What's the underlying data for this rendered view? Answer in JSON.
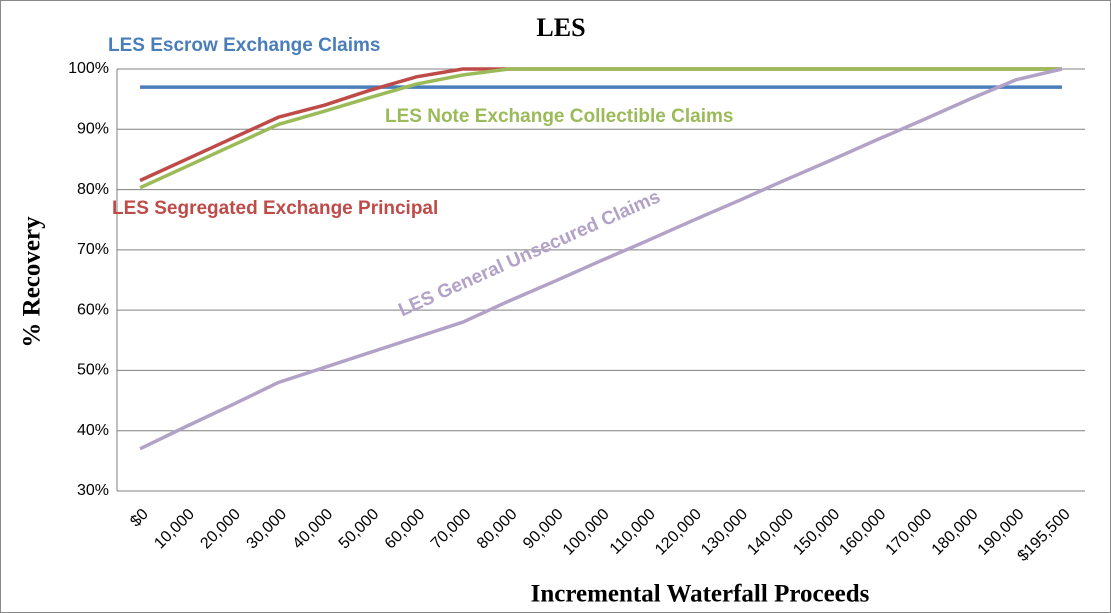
{
  "chart_data": {
    "type": "line",
    "title": "LES",
    "x_label": "Incremental Waterfall Proceeds",
    "y_label": "% Recovery",
    "categories": [
      "$0",
      "10,000",
      "20,000",
      "30,000",
      "40,000",
      "50,000",
      "60,000",
      "70,000",
      "80,000",
      "90,000",
      "100,000",
      "110,000",
      "120,000",
      "130,000",
      "140,000",
      "150,000",
      "160,000",
      "170,000",
      "180,000",
      "190,000",
      "$195,500"
    ],
    "series": [
      {
        "name": "LES Escrow Exchange Claims",
        "color": "#4a7ebb",
        "values": [
          97,
          97,
          97,
          97,
          97,
          97,
          97,
          97,
          97,
          97,
          97,
          97,
          97,
          97,
          97,
          97,
          97,
          97,
          97,
          97,
          97
        ]
      },
      {
        "name": "LES Segregated Exchange Principal",
        "color": "#be4b48",
        "values": [
          81.5,
          85,
          88.5,
          92,
          94,
          96.5,
          98.7,
          100,
          100,
          100,
          100,
          100,
          100,
          100,
          100,
          100,
          100,
          100,
          100,
          100,
          100
        ]
      },
      {
        "name": "LES Note Exchange Collectible Claims",
        "color": "#9bbb59",
        "values": [
          80.3,
          83.8,
          87.3,
          90.8,
          93,
          95.3,
          97.5,
          99,
          100,
          100,
          100,
          100,
          100,
          100,
          100,
          100,
          100,
          100,
          100,
          100,
          100
        ]
      },
      {
        "name": "LES General Unsecured Claims",
        "color": "#b3a2c7",
        "values": [
          37,
          40.7,
          44.3,
          48,
          50.5,
          53,
          55.5,
          58,
          61.5,
          64.8,
          68.2,
          71.5,
          74.9,
          78.2,
          81.6,
          84.9,
          88.3,
          91.6,
          95,
          98.2,
          100
        ]
      }
    ],
    "ylim": [
      30,
      100
    ],
    "yticks": [
      {
        "value": 30,
        "label": "30%"
      },
      {
        "value": 40,
        "label": "40%"
      },
      {
        "value": 50,
        "label": "50%"
      },
      {
        "value": 60,
        "label": "60%"
      },
      {
        "value": 70,
        "label": "70%"
      },
      {
        "value": 80,
        "label": "80%"
      },
      {
        "value": 90,
        "label": "90%"
      },
      {
        "value": 100,
        "label": "100%"
      }
    ],
    "grid": true
  }
}
